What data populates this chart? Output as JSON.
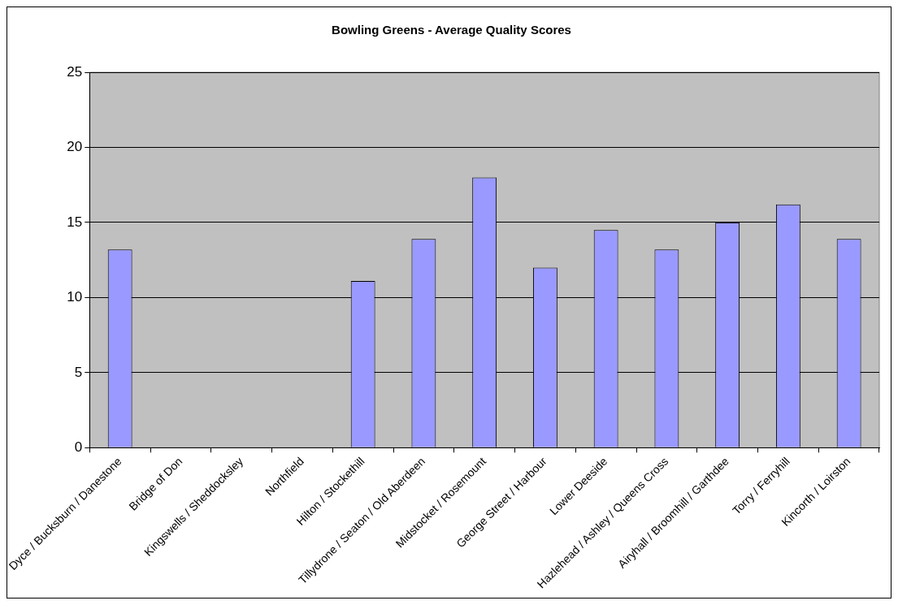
{
  "chart_data": {
    "type": "bar",
    "title": "Bowling Greens - Average Quality Scores",
    "categories": [
      "Dyce / Bucksburn / Danestone",
      "Bridge of Don",
      "Kingswells / Sheddocksley",
      "Northfield",
      "Hilton / Stockethill",
      "Tillydrone / Seaton / Old Aberdeen",
      "Midstocket / Rosemount",
      "George Street / Harbour",
      "Lower Deeside",
      "Hazlehead / Ashley / Queens Cross",
      "Airyhall / Broomhill / Garthdee",
      "Torry / Ferryhill",
      "Kincorth / Loirston"
    ],
    "values": [
      13.2,
      null,
      null,
      null,
      11.1,
      13.9,
      18.0,
      12.0,
      14.5,
      13.2,
      15.0,
      16.2,
      13.9
    ],
    "color": "#9999ff",
    "ylim": [
      0,
      25
    ],
    "yticks": [
      0,
      5,
      10,
      15,
      20,
      25
    ],
    "grid": "y",
    "legend": false
  }
}
